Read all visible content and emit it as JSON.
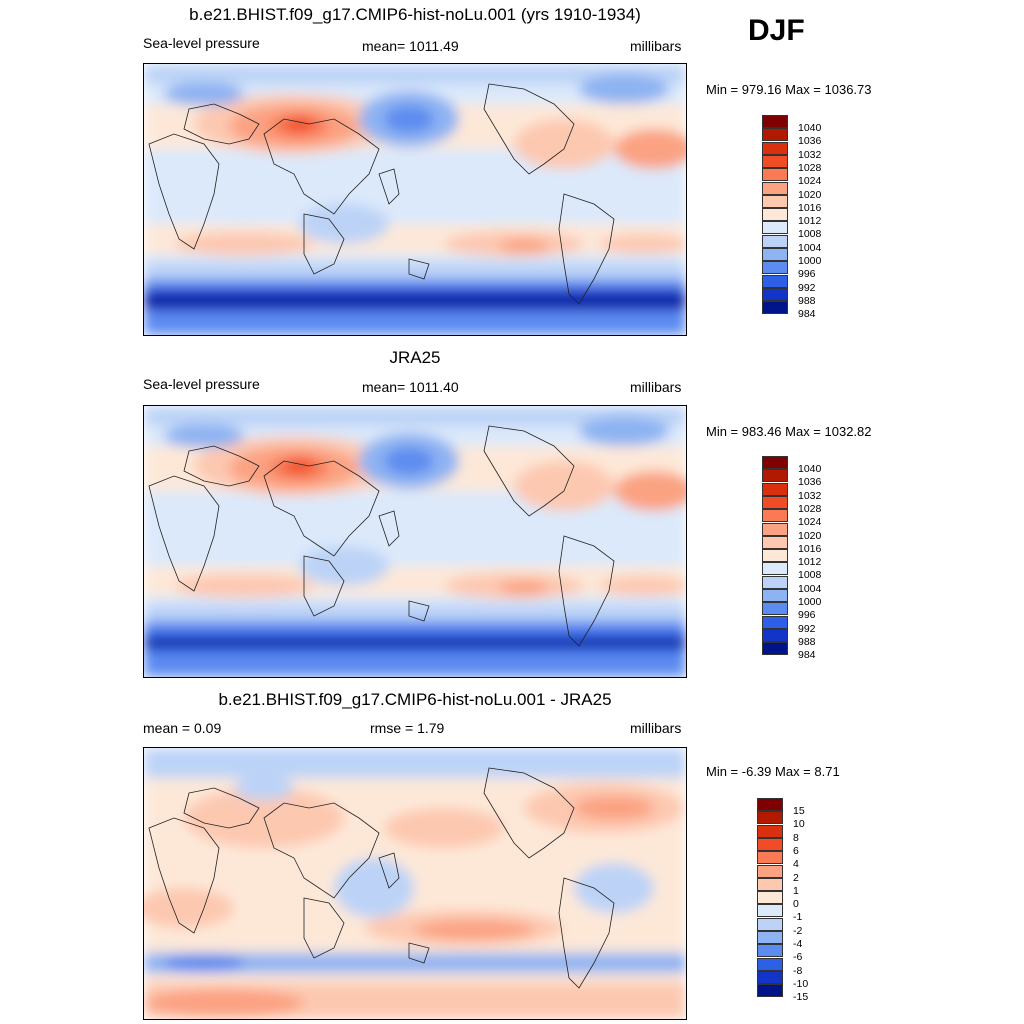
{
  "season": "DJF",
  "panels": [
    {
      "title": "b.e21.BHIST.f09_g17.CMIP6-hist-noLu.001 (yrs 1910-1934)",
      "left_label": "Sea-level pressure",
      "center_label": "mean= 1011.49",
      "units": "millibars",
      "minmax": "Min = 979.16 Max = 1036.73",
      "colorbar_labels": [
        "1040",
        "1036",
        "1032",
        "1028",
        "1024",
        "1020",
        "1016",
        "1012",
        "1008",
        "1004",
        "1000",
        "996",
        "992",
        "988",
        "984"
      ]
    },
    {
      "title": "JRA25",
      "left_label": "Sea-level pressure",
      "center_label": "mean= 1011.40",
      "units": "millibars",
      "minmax": "Min = 983.46 Max = 1032.82",
      "colorbar_labels": [
        "1040",
        "1036",
        "1032",
        "1028",
        "1024",
        "1020",
        "1016",
        "1012",
        "1008",
        "1004",
        "1000",
        "996",
        "992",
        "988",
        "984"
      ]
    },
    {
      "title": "b.e21.BHIST.f09_g17.CMIP6-hist-noLu.001 - JRA25",
      "left_label": "mean =   0.09",
      "center_label": "rmse =   1.79",
      "units": "millibars",
      "minmax": "Min =  -6.39 Max =   8.71",
      "colorbar_labels": [
        "15",
        "10",
        "8",
        "6",
        "4",
        "2",
        "1",
        "0",
        "-1",
        "-2",
        "-4",
        "-6",
        "-8",
        "-10",
        "-15"
      ]
    }
  ],
  "colors": {
    "scale": [
      "#7f0000",
      "#b21a00",
      "#d93010",
      "#f04c26",
      "#f97a55",
      "#fba282",
      "#fdc8b0",
      "#fde8d8",
      "#dbe9fb",
      "#bcd3f7",
      "#8eb3f2",
      "#5d8cf0",
      "#2d60e6",
      "#1334c8",
      "#00148a"
    ]
  }
}
